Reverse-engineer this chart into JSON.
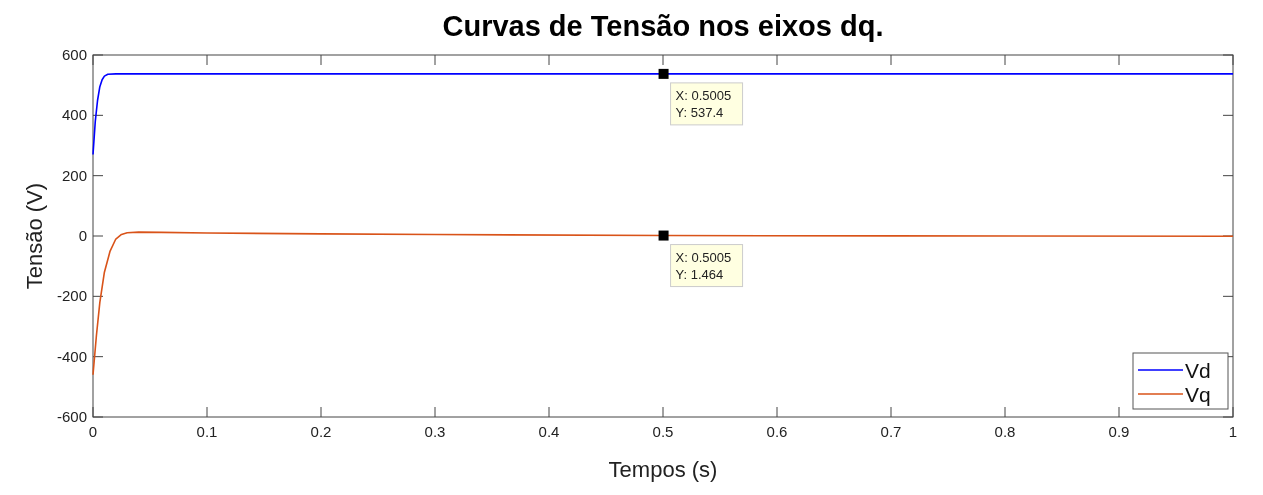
{
  "chart_data": {
    "type": "line",
    "title": "Curvas de Tensão nos eixos dq.",
    "xlabel": "Tempos (s)",
    "ylabel": "Tensão (V)",
    "xlim": [
      0,
      1
    ],
    "xticks": [
      0,
      0.1,
      0.2,
      0.3,
      0.4,
      0.5,
      0.6,
      0.7,
      0.8,
      0.9,
      1
    ],
    "ylim": [
      -600,
      600
    ],
    "yticks": [
      -600,
      -400,
      -200,
      0,
      200,
      400,
      600
    ],
    "grid": false,
    "legend": "bottom right",
    "line_style": "solid",
    "marker": "none",
    "series": [
      {
        "name": "Vd",
        "color": "#0000ff",
        "x": [
          0,
          0.002,
          0.004,
          0.006,
          0.008,
          0.01,
          0.013,
          0.02,
          0.5005,
          1
        ],
        "values": [
          270,
          380,
          450,
          495,
          518,
          530,
          536,
          537.4,
          537.4,
          537.4
        ]
      },
      {
        "name": "Vq",
        "color": "#d95319",
        "x": [
          0,
          0.003,
          0.006,
          0.01,
          0.015,
          0.02,
          0.025,
          0.03,
          0.04,
          0.06,
          0.1,
          0.2,
          0.3,
          0.5005,
          0.7,
          1
        ],
        "values": [
          -460,
          -330,
          -220,
          -120,
          -50,
          -10,
          5,
          11,
          13,
          12,
          10,
          7,
          5,
          1.464,
          0.5,
          -1
        ]
      }
    ],
    "annotations": [
      {
        "text": "X: 0.5005\nY: 537.4",
        "x": 0.5005,
        "y": 537.4
      },
      {
        "text": "X: 0.5005\nY: 1.464",
        "x": 0.5005,
        "y": 1.464
      }
    ]
  }
}
